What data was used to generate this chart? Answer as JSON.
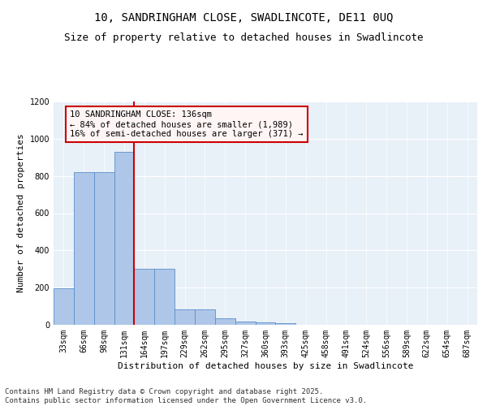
{
  "title1": "10, SANDRINGHAM CLOSE, SWADLINCOTE, DE11 0UQ",
  "title2": "Size of property relative to detached houses in Swadlincote",
  "xlabel": "Distribution of detached houses by size in Swadlincote",
  "ylabel": "Number of detached properties",
  "categories": [
    "33sqm",
    "66sqm",
    "98sqm",
    "131sqm",
    "164sqm",
    "197sqm",
    "229sqm",
    "262sqm",
    "295sqm",
    "327sqm",
    "360sqm",
    "393sqm",
    "425sqm",
    "458sqm",
    "491sqm",
    "524sqm",
    "556sqm",
    "589sqm",
    "622sqm",
    "654sqm",
    "687sqm"
  ],
  "values": [
    196,
    820,
    820,
    930,
    300,
    300,
    83,
    83,
    35,
    18,
    12,
    8,
    0,
    0,
    0,
    0,
    0,
    0,
    0,
    0,
    0
  ],
  "bar_color": "#aec6e8",
  "bar_edge_color": "#5b8fc9",
  "vline_x_idx": 3,
  "vline_color": "#cc0000",
  "annotation_text": "10 SANDRINGHAM CLOSE: 136sqm\n← 84% of detached houses are smaller (1,989)\n16% of semi-detached houses are larger (371) →",
  "annotation_border_color": "#cc0000",
  "ylim": [
    0,
    1200
  ],
  "yticks": [
    0,
    200,
    400,
    600,
    800,
    1000,
    1200
  ],
  "bg_color": "#e8f0f8",
  "footer": "Contains HM Land Registry data © Crown copyright and database right 2025.\nContains public sector information licensed under the Open Government Licence v3.0.",
  "title_fontsize": 10,
  "subtitle_fontsize": 9,
  "axis_label_fontsize": 8,
  "tick_fontsize": 7,
  "annotation_fontsize": 7.5,
  "footer_fontsize": 6.5
}
